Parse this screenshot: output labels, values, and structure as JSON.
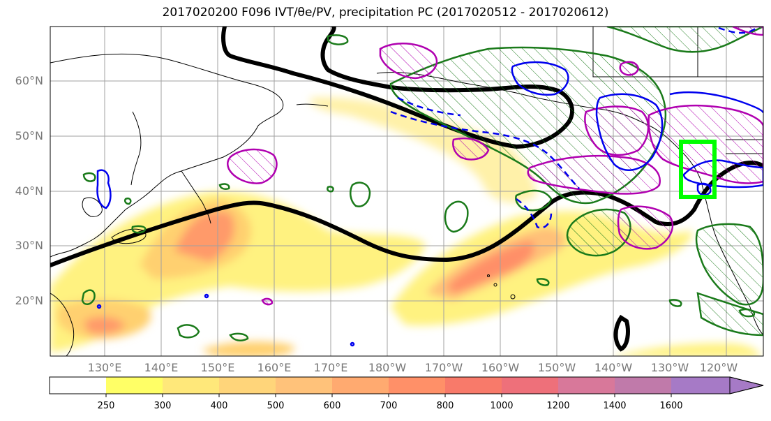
{
  "title": "2017020200 F096 IVT/θe/PV, precipitation PC (2017020512 - 2017020612)",
  "map": {
    "lat_labels": [
      "60°N",
      "50°N",
      "40°N",
      "30°N",
      "20°N"
    ],
    "lon_labels": [
      "130°E",
      "140°E",
      "150°E",
      "160°E",
      "170°E",
      "180°W",
      "170°W",
      "160°W",
      "150°W",
      "140°W",
      "130°W",
      "120°W"
    ],
    "colors": {
      "ocean": "#ffffff",
      "coast": "#000000",
      "jet": "#000000",
      "magenta": "#b000b0",
      "green": "#1a7a1a",
      "blue": "#0000ee",
      "box": "#00ff00"
    }
  },
  "colorbar": {
    "levels": [
      "250",
      "300",
      "400",
      "500",
      "600",
      "700",
      "800",
      "1000",
      "1200",
      "1400",
      "1600"
    ],
    "colors": [
      "#ffff66",
      "#ffe87a",
      "#ffd57a",
      "#ffc27a",
      "#ffaa70",
      "#ff9068",
      "#f87a6a",
      "#ee707a",
      "#d8789a",
      "#c07aaa",
      "#a67ac6"
    ]
  }
}
